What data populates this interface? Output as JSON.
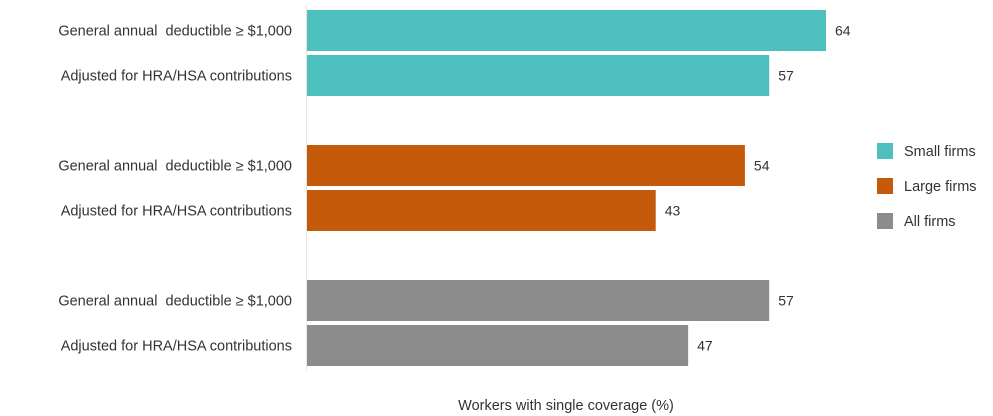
{
  "chart_data": {
    "type": "bar",
    "orientation": "horizontal",
    "categories": [
      "General annual  deductible ≥ $1,000",
      "Adjusted for HRA/HSA contributions"
    ],
    "series": [
      {
        "name": "Small firms",
        "color": "#4dbfbf",
        "values": [
          64,
          57
        ]
      },
      {
        "name": "Large firms",
        "color": "#c55a0a",
        "values": [
          54,
          43
        ]
      },
      {
        "name": "All firms",
        "color": "#8c8c8c",
        "values": [
          57,
          47
        ]
      }
    ],
    "xlabel": "Workers with single coverage (%)",
    "xlim": [
      0,
      70
    ],
    "grid": false,
    "legend": "right"
  }
}
